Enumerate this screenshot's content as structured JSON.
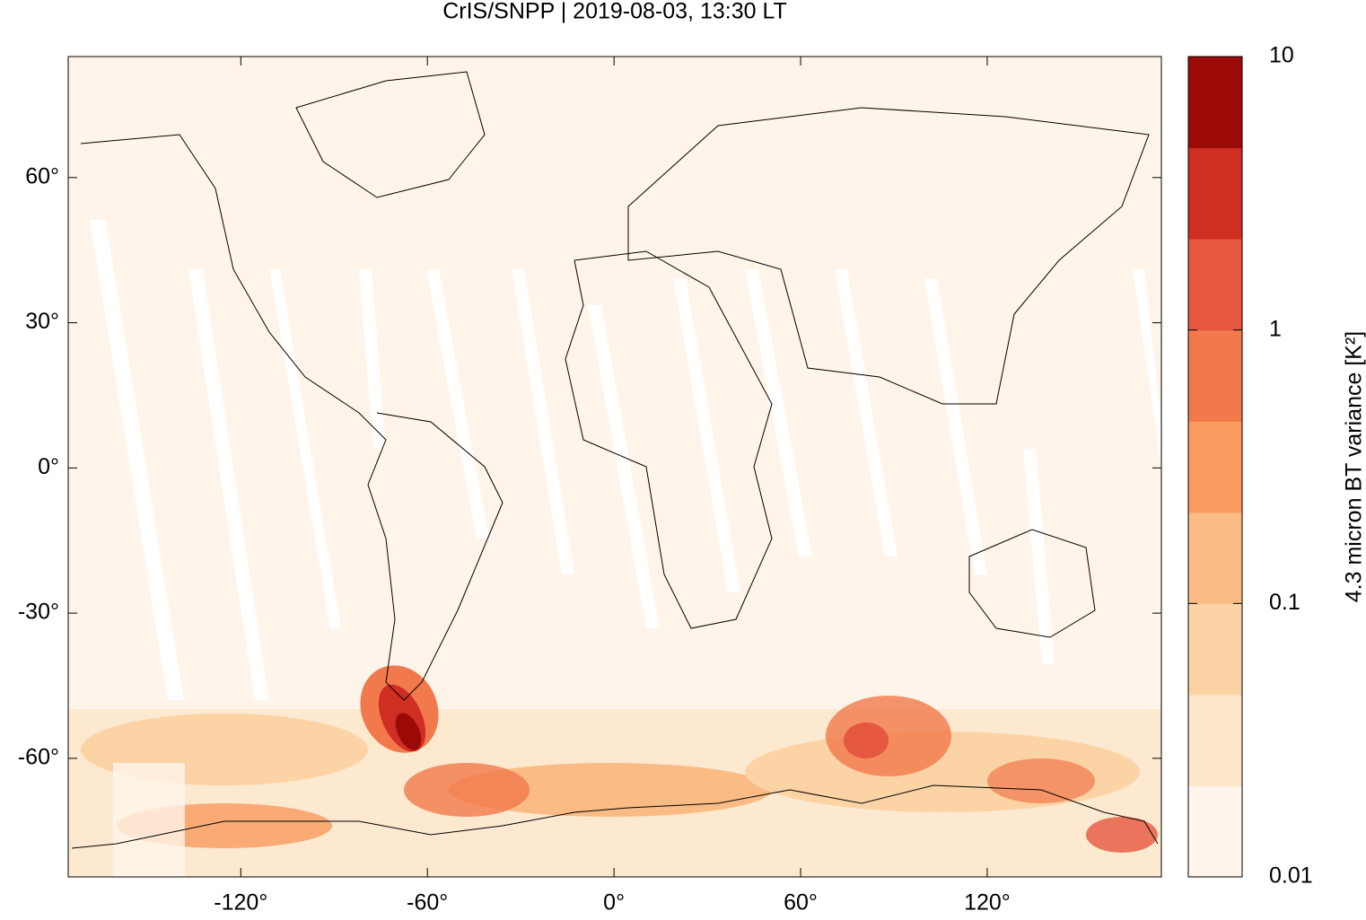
{
  "chart_data": {
    "type": "heatmap",
    "title": "CrIS/SNPP | 2019-08-03, 13:30 LT",
    "xlim": [
      -175.5,
      176
    ],
    "ylim": [
      -84.5,
      85
    ],
    "xticks": [
      {
        "value": -120,
        "label": "-120°"
      },
      {
        "value": -60,
        "label": "-60°"
      },
      {
        "value": 0,
        "label": "0°"
      },
      {
        "value": 60,
        "label": "60°"
      },
      {
        "value": 120,
        "label": "120°"
      }
    ],
    "yticks": [
      {
        "value": 60,
        "label": "60°"
      },
      {
        "value": 30,
        "label": "30°"
      },
      {
        "value": 0,
        "label": "0°"
      },
      {
        "value": -30,
        "label": "-30°"
      },
      {
        "value": -60,
        "label": "-60°"
      }
    ],
    "colorbar": {
      "label": "4.3 micron BT variance [K²]",
      "lim": [
        0.01,
        10
      ],
      "log": true,
      "ticks": [
        10,
        1,
        0.1,
        0.01
      ],
      "colors": [
        "#fff5eb",
        "#fde6ca",
        "#fcd3a5",
        "#fbbb84",
        "#f99b5e",
        "#f1794b",
        "#e5573e",
        "#cf2e22",
        "#9c0a07"
      ]
    }
  }
}
